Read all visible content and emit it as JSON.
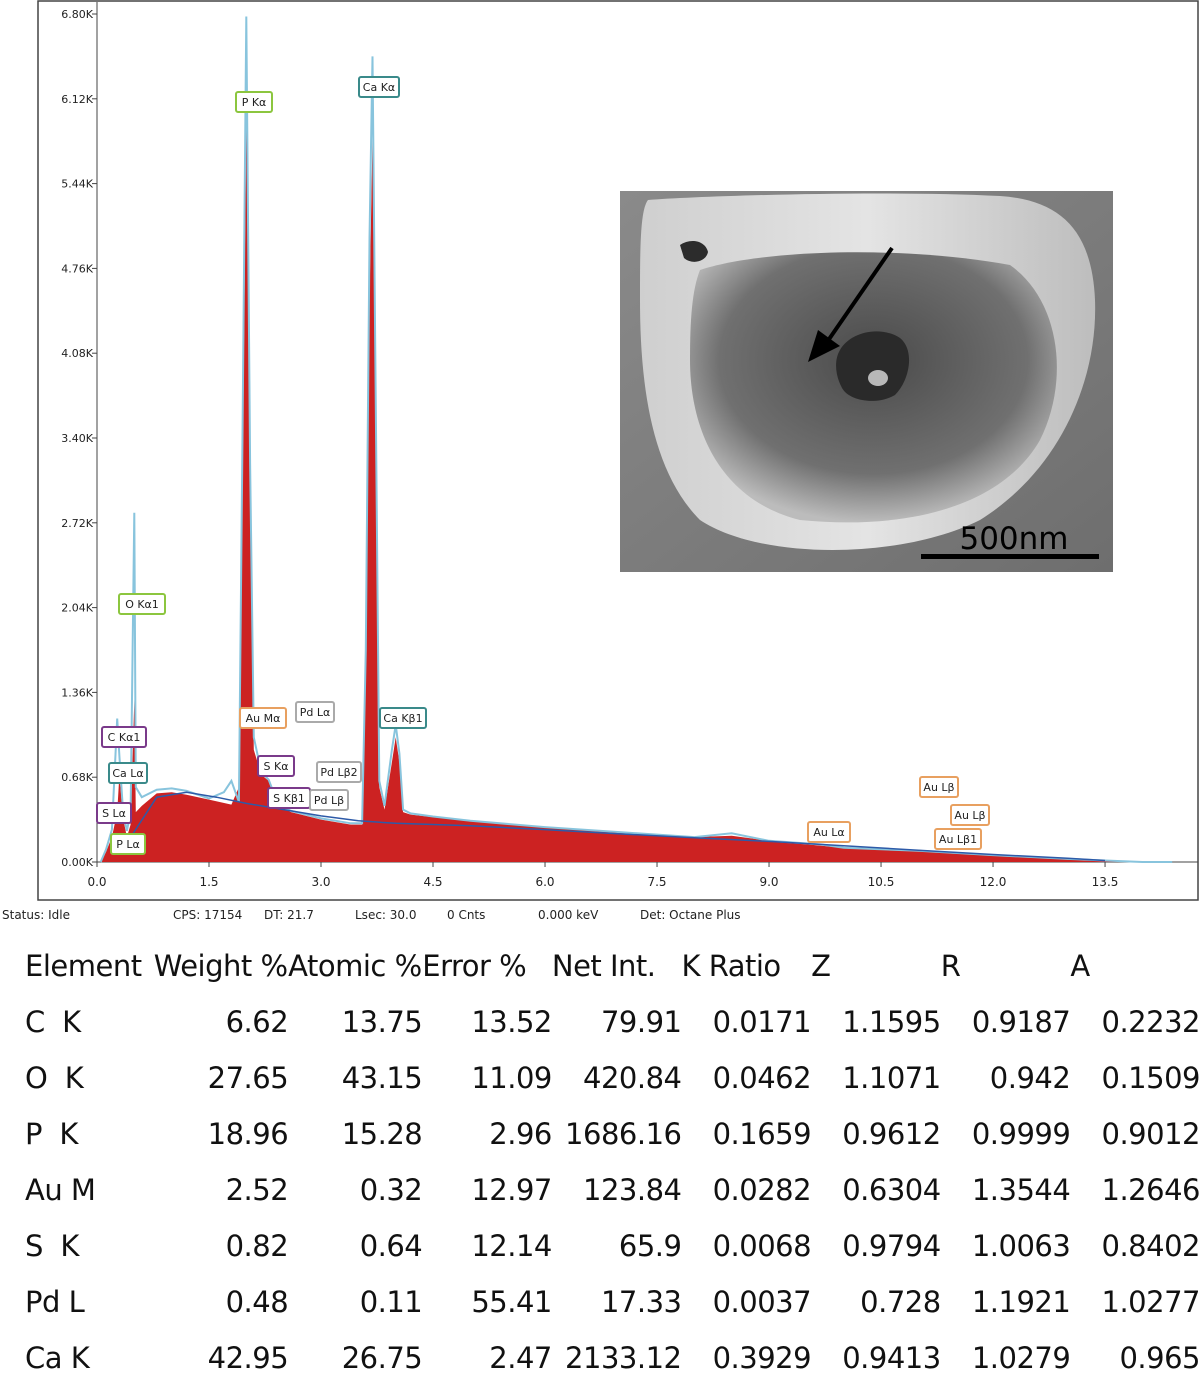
{
  "chart_data": {
    "type": "line",
    "xlim": [
      0,
      14.4
    ],
    "ylim": [
      0,
      6800
    ],
    "x_ticks": [
      "0.0",
      "1.5",
      "3.0",
      "4.5",
      "6.0",
      "7.5",
      "9.0",
      "10.5",
      "12.0",
      "13.5"
    ],
    "x_tick_values": [
      0,
      1.5,
      3.0,
      4.5,
      6.0,
      7.5,
      9.0,
      10.5,
      12.0,
      13.5
    ],
    "y_ticks": [
      "0.00K",
      "0.68K",
      "1.36K",
      "2.04K",
      "2.72K",
      "3.40K",
      "4.08K",
      "4.76K",
      "5.44K",
      "6.12K",
      "6.80K"
    ],
    "y_tick_values": [
      0,
      680,
      1360,
      2040,
      2720,
      3400,
      4080,
      4760,
      5440,
      6120,
      6800
    ],
    "grid": false,
    "series": [
      {
        "kind": "spectrum-fill",
        "color": "#cc2222",
        "x": [
          0.05,
          0.12,
          0.2,
          0.27,
          0.3,
          0.35,
          0.4,
          0.45,
          0.5,
          0.52,
          0.6,
          0.8,
          1.0,
          1.2,
          1.5,
          1.8,
          1.9,
          1.95,
          2.0,
          2.05,
          2.1,
          2.2,
          2.3,
          2.4,
          2.5,
          2.6,
          2.8,
          3.0,
          3.2,
          3.4,
          3.55,
          3.6,
          3.65,
          3.69,
          3.73,
          3.78,
          3.85,
          3.95,
          4.0,
          4.05,
          4.1,
          4.2,
          4.5,
          5.0,
          6.0,
          7.0,
          8.0,
          8.5,
          9.0,
          9.7,
          10.0,
          11.0,
          12.0,
          13.0,
          13.5,
          14.0,
          14.4
        ],
        "y": [
          0,
          80,
          200,
          400,
          700,
          350,
          200,
          300,
          1300,
          400,
          450,
          550,
          560,
          540,
          500,
          460,
          600,
          3000,
          6000,
          3000,
          900,
          700,
          650,
          480,
          430,
          400,
          370,
          340,
          320,
          300,
          300,
          1500,
          4500,
          5800,
          3500,
          600,
          420,
          800,
          1000,
          800,
          400,
          380,
          360,
          330,
          280,
          240,
          200,
          210,
          170,
          130,
          115,
          90,
          55,
          25,
          12,
          0,
          0
        ]
      },
      {
        "kind": "spectrum-line",
        "color": "#88c4dd",
        "x": [
          0.05,
          0.12,
          0.2,
          0.27,
          0.3,
          0.35,
          0.4,
          0.45,
          0.5,
          0.52,
          0.6,
          0.8,
          1.0,
          1.2,
          1.5,
          1.7,
          1.8,
          1.9,
          1.95,
          2.0,
          2.05,
          2.1,
          2.2,
          2.3,
          2.4,
          2.5,
          2.6,
          2.8,
          3.0,
          3.2,
          3.4,
          3.55,
          3.6,
          3.65,
          3.69,
          3.73,
          3.78,
          3.85,
          3.95,
          4.0,
          4.05,
          4.1,
          4.2,
          4.5,
          5.0,
          6.0,
          7.0,
          8.0,
          8.5,
          9.0,
          9.7,
          10.0,
          11.0,
          12.0,
          13.0,
          13.5,
          14.0,
          14.4
        ],
        "y": [
          0,
          100,
          260,
          1150,
          850,
          400,
          250,
          400,
          2800,
          600,
          520,
          580,
          590,
          570,
          510,
          560,
          650,
          480,
          3500,
          6780,
          3200,
          1000,
          720,
          660,
          500,
          440,
          410,
          380,
          350,
          330,
          310,
          310,
          1700,
          5000,
          6460,
          3900,
          650,
          450,
          900,
          1100,
          870,
          420,
          390,
          365,
          330,
          280,
          240,
          200,
          230,
          170,
          140,
          115,
          90,
          55,
          25,
          12,
          0,
          0
        ]
      }
    ],
    "annotations": [
      {
        "text": "P  Kα",
        "group": "P"
      },
      {
        "text": "Ca Kα",
        "group": "Ca"
      },
      {
        "text": "O  Kα1",
        "group": "O"
      },
      {
        "text": "Au Mα",
        "group": "Au"
      },
      {
        "text": "Pd Lα",
        "group": "Pd"
      },
      {
        "text": "Ca Kβ1",
        "group": "Ca"
      },
      {
        "text": "C  Kα1",
        "group": "C"
      },
      {
        "text": "Ca Lα",
        "group": "Ca"
      },
      {
        "text": "S  Kα",
        "group": "S"
      },
      {
        "text": "Pd Lβ2",
        "group": "Pd"
      },
      {
        "text": "S  Kβ1",
        "group": "S"
      },
      {
        "text": "Pd Lβ",
        "group": "Pd"
      },
      {
        "text": "S  Lα",
        "group": "S"
      },
      {
        "text": "P  Lα",
        "group": "P"
      },
      {
        "text": "Au Lα",
        "group": "Au"
      },
      {
        "text": "Au Lβ",
        "group": "Au"
      },
      {
        "text": "Au Lβ",
        "group": "Au"
      },
      {
        "text": "Au Lβ1",
        "group": "Au"
      }
    ],
    "annotation_colors": {
      "P": "#8cc63f",
      "Ca": "#3a8a8a",
      "O": "#8cc63f",
      "Au": "#e8a060",
      "Pd": "#aaaaaa",
      "C": "#7a3a8a",
      "S": "#7a3a8a"
    },
    "inset": {
      "scale_bar_label": "500nm"
    }
  },
  "status_bar": {
    "status": "Status: Idle",
    "cps": "CPS: 17154",
    "dt": "DT: 21.7",
    "lsec": "Lsec: 30.0",
    "cnts": "0 Cnts",
    "kev": "0.000 keV",
    "det": "Det: Octane Plus"
  },
  "results_table": {
    "headers": [
      "Element",
      "Weight %",
      "Atomic %",
      "Error %",
      "Net Int.",
      "K Ratio",
      "Z",
      "R",
      "A"
    ],
    "rows": [
      [
        "C  K",
        "6.62",
        "13.75",
        "13.52",
        "79.91",
        "0.0171",
        "1.1595",
        "0.9187",
        "0.2232"
      ],
      [
        "O  K",
        "27.65",
        "43.15",
        "11.09",
        "420.84",
        "0.0462",
        "1.1071",
        "0.942",
        "0.1509"
      ],
      [
        "P  K",
        "18.96",
        "15.28",
        "2.96",
        "1686.16",
        "0.1659",
        "0.9612",
        "0.9999",
        "0.9012"
      ],
      [
        "Au M",
        "2.52",
        "0.32",
        "12.97",
        "123.84",
        "0.0282",
        "0.6304",
        "1.3544",
        "1.2646"
      ],
      [
        "S  K",
        "0.82",
        "0.64",
        "12.14",
        "65.9",
        "0.0068",
        "0.9794",
        "1.0063",
        "0.8402"
      ],
      [
        "Pd L",
        "0.48",
        "0.11",
        "55.41",
        "17.33",
        "0.0037",
        "0.728",
        "1.1921",
        "1.0277"
      ],
      [
        "Ca K",
        "42.95",
        "26.75",
        "2.47",
        "2133.12",
        "0.3929",
        "0.9413",
        "1.0279",
        "0.965"
      ]
    ]
  }
}
